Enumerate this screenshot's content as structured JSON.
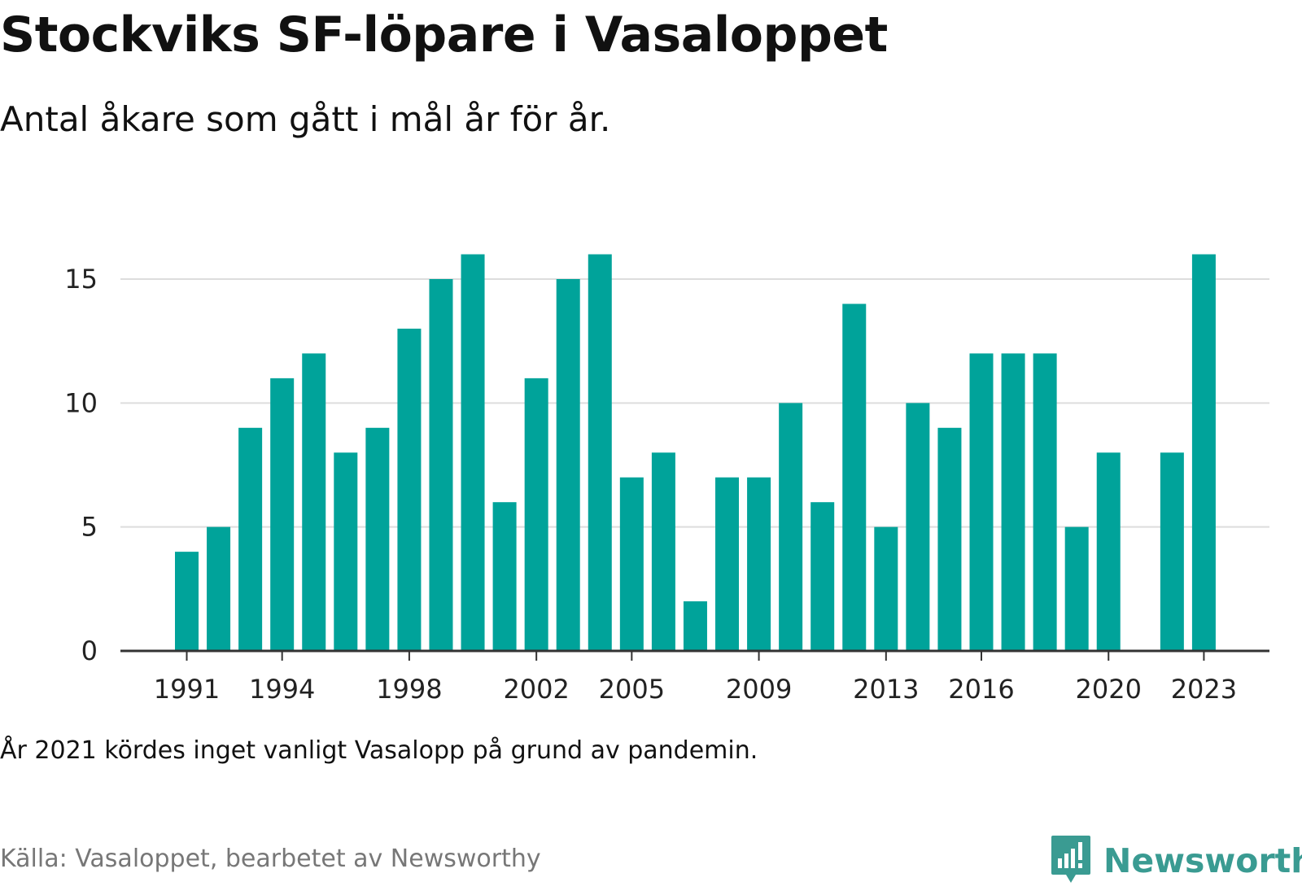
{
  "header": {
    "title": "Stockviks SF-löpare i Vasaloppet",
    "subtitle": "Antal åkare som gått i mål år för år."
  },
  "footer": {
    "note": "År 2021 kördes inget vanligt Vasalopp på grund av pandemin.",
    "source": "Källa: Vasaloppet, bearbetet av Newsworthy",
    "brand": "Newsworthy"
  },
  "colors": {
    "bar": "#00a39a",
    "grid": "#dddddd",
    "axis": "#333333",
    "brand": "#3a9b92"
  },
  "chart_data": {
    "type": "bar",
    "title": "Stockviks SF-löpare i Vasaloppet",
    "subtitle": "Antal åkare som gått i mål år för år.",
    "xlabel": "",
    "ylabel": "",
    "categories": [
      1991,
      1992,
      1993,
      1994,
      1995,
      1996,
      1997,
      1998,
      1999,
      2000,
      2001,
      2002,
      2003,
      2004,
      2005,
      2006,
      2007,
      2008,
      2009,
      2010,
      2011,
      2012,
      2013,
      2014,
      2015,
      2016,
      2017,
      2018,
      2019,
      2020,
      2021,
      2022,
      2023
    ],
    "values": [
      4,
      5,
      9,
      11,
      12,
      8,
      9,
      13,
      15,
      16,
      6,
      11,
      15,
      16,
      7,
      8,
      2,
      7,
      7,
      10,
      6,
      14,
      5,
      10,
      9,
      12,
      12,
      12,
      5,
      8,
      null,
      8,
      16
    ],
    "x_tick_labels": [
      "1991",
      "1994",
      "1998",
      "2002",
      "2005",
      "2009",
      "2013",
      "2016",
      "2020",
      "2023"
    ],
    "y_ticks": [
      0,
      5,
      10,
      15
    ],
    "ylim": [
      0,
      16
    ],
    "grid": true,
    "legend": "none"
  }
}
